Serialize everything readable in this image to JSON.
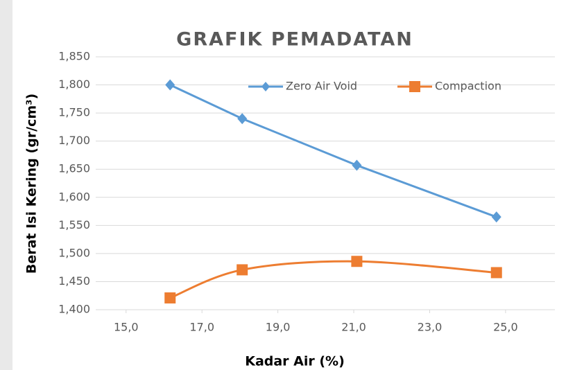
{
  "chart_data": {
    "type": "line",
    "title": "GRAFIK PEMADATAN",
    "xlabel": "Kadar Air (%)",
    "ylabel": "Berat Isi Kering (gr/cm³)",
    "xlim": [
      14.2,
      26.3
    ],
    "ylim": [
      1400,
      1850
    ],
    "xticks": [
      {
        "value": 15,
        "label": "15,0"
      },
      {
        "value": 17,
        "label": "17,0"
      },
      {
        "value": 19,
        "label": "19,0"
      },
      {
        "value": 21,
        "label": "21,0"
      },
      {
        "value": 23,
        "label": "23,0"
      },
      {
        "value": 25,
        "label": "25,0"
      }
    ],
    "yticks": [
      {
        "value": 1400,
        "label": "1,400"
      },
      {
        "value": 1450,
        "label": "1,450"
      },
      {
        "value": 1500,
        "label": "1,500"
      },
      {
        "value": 1550,
        "label": "1,550"
      },
      {
        "value": 1600,
        "label": "1,600"
      },
      {
        "value": 1650,
        "label": "1,650"
      },
      {
        "value": 1700,
        "label": "1,700"
      },
      {
        "value": 1750,
        "label": "1,750"
      },
      {
        "value": 1800,
        "label": "1,800"
      },
      {
        "value": 1850,
        "label": "1,850"
      }
    ],
    "grid": true,
    "legend": "top",
    "series": [
      {
        "name": "Zero Air Void",
        "color": "#5b9bd5",
        "marker": "diamond",
        "smooth": false,
        "x": [
          16.16,
          18.06,
          21.08,
          24.76
        ],
        "values": [
          1800,
          1740,
          1657,
          1565
        ]
      },
      {
        "name": "Compaction",
        "color": "#ed7d31",
        "marker": "square",
        "smooth": true,
        "x": [
          16.16,
          18.06,
          21.08,
          24.76
        ],
        "values": [
          1421,
          1471,
          1486,
          1466
        ]
      }
    ]
  }
}
